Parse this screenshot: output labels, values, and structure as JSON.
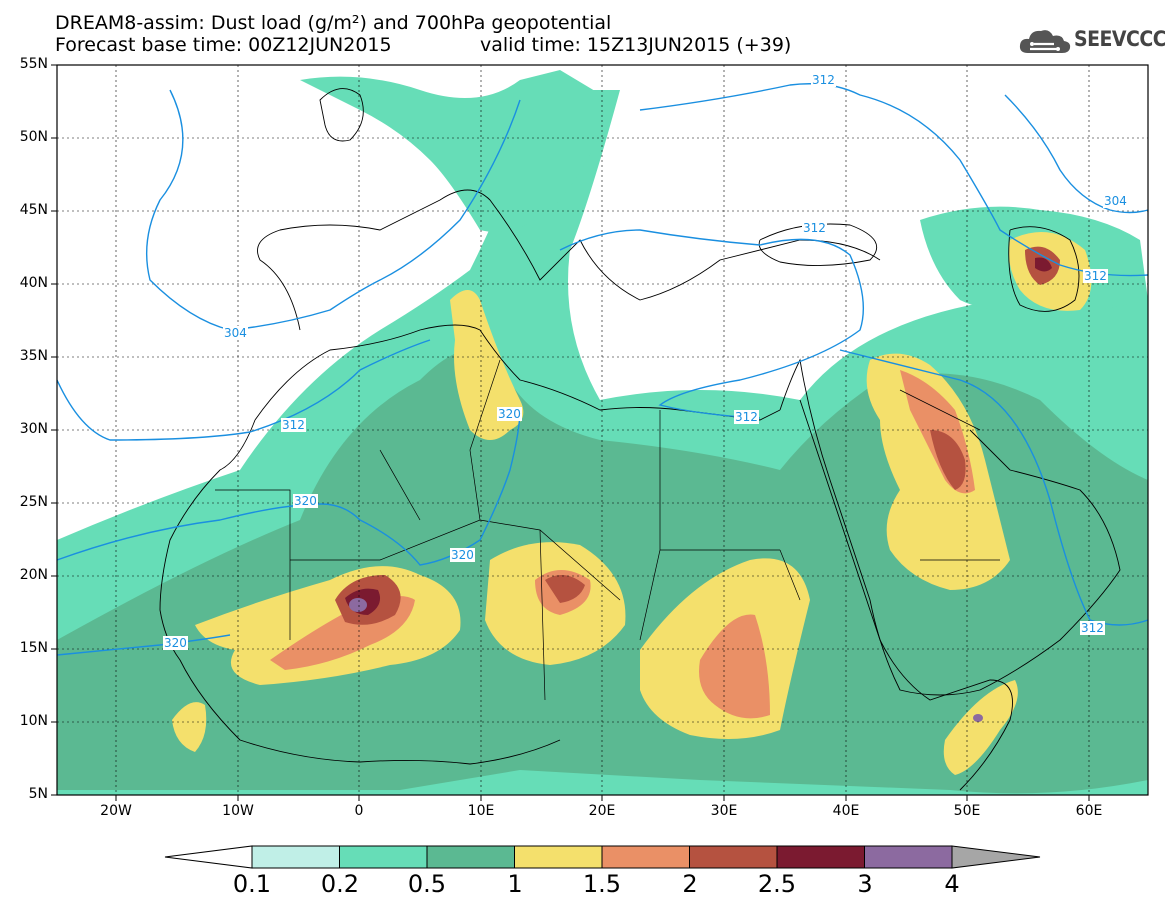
{
  "header": {
    "title_line1": "DREAM8-assim: Dust load (g/m²) and 700hPa geopotential",
    "forecast_base": "Forecast base time: 00Z12JUN2015",
    "valid_time": "valid time: 15Z13JUN2015 (+39)"
  },
  "logo": {
    "text": "SEEVCCC",
    "icon": "cloud-icon"
  },
  "axes": {
    "lat_labels": [
      "55N",
      "50N",
      "45N",
      "40N",
      "35N",
      "30N",
      "25N",
      "20N",
      "15N",
      "10N",
      "5N"
    ],
    "lon_labels": [
      "20W",
      "10W",
      "0",
      "10E",
      "20E",
      "30E",
      "40E",
      "50E",
      "60E"
    ]
  },
  "contours": {
    "labels": [
      "312",
      "304",
      "312",
      "312",
      "304",
      "312",
      "320",
      "312",
      "320",
      "320",
      "312"
    ]
  },
  "colorbar": {
    "labels": [
      "0.1",
      "0.2",
      "0.5",
      "1",
      "1.5",
      "2",
      "2.5",
      "3",
      "4"
    ],
    "colors": [
      "#c0efe7",
      "#66ddb7",
      "#5bb992",
      "#f4e06c",
      "#ea9066",
      "#b55240",
      "#7b1a30",
      "#8c6aa0"
    ],
    "under_color": "#ffffff",
    "over_color": "#a6a6a6"
  },
  "style": {
    "contour_color": "#1a8fe0",
    "border_color": "#000000"
  }
}
